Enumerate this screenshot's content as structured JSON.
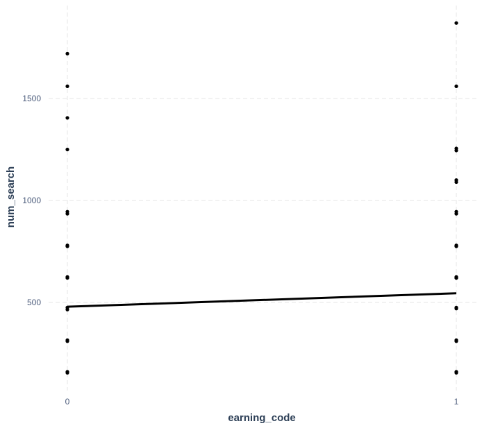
{
  "chart_data": {
    "type": "scatter",
    "xlabel": "earning_code",
    "ylabel": "num_search",
    "x_ticks": [
      "0",
      "1"
    ],
    "y_ticks": [
      "500",
      "1000",
      "1500"
    ],
    "xlim": [
      -0.05,
      1.05
    ],
    "ylim": [
      80,
      1950
    ],
    "grid": true,
    "series": [
      {
        "x": [
          0,
          0,
          0,
          0,
          0,
          0,
          0,
          0,
          0,
          0,
          0,
          0,
          0,
          0,
          0,
          0
        ],
        "y": [
          1720,
          1560,
          1405,
          1250,
          945,
          935,
          780,
          775,
          625,
          620,
          475,
          465,
          315,
          310,
          160,
          155
        ]
      },
      {
        "x": [
          1,
          1,
          1,
          1,
          1,
          1,
          1,
          1,
          1,
          1,
          1,
          1,
          1,
          1,
          1,
          1,
          1,
          1,
          1
        ],
        "y": [
          1870,
          1560,
          1255,
          1245,
          1100,
          1090,
          945,
          935,
          780,
          775,
          625,
          620,
          475,
          470,
          315,
          310,
          160,
          155,
          620
        ]
      }
    ],
    "trend_line": {
      "x": [
        0,
        1
      ],
      "y": [
        479,
        545
      ]
    },
    "colors": {
      "points": "#000000",
      "line": "#000000",
      "grid": "#e6e6e6",
      "tick_text": "#4a5a7a",
      "title_text": "#2e4057"
    }
  }
}
